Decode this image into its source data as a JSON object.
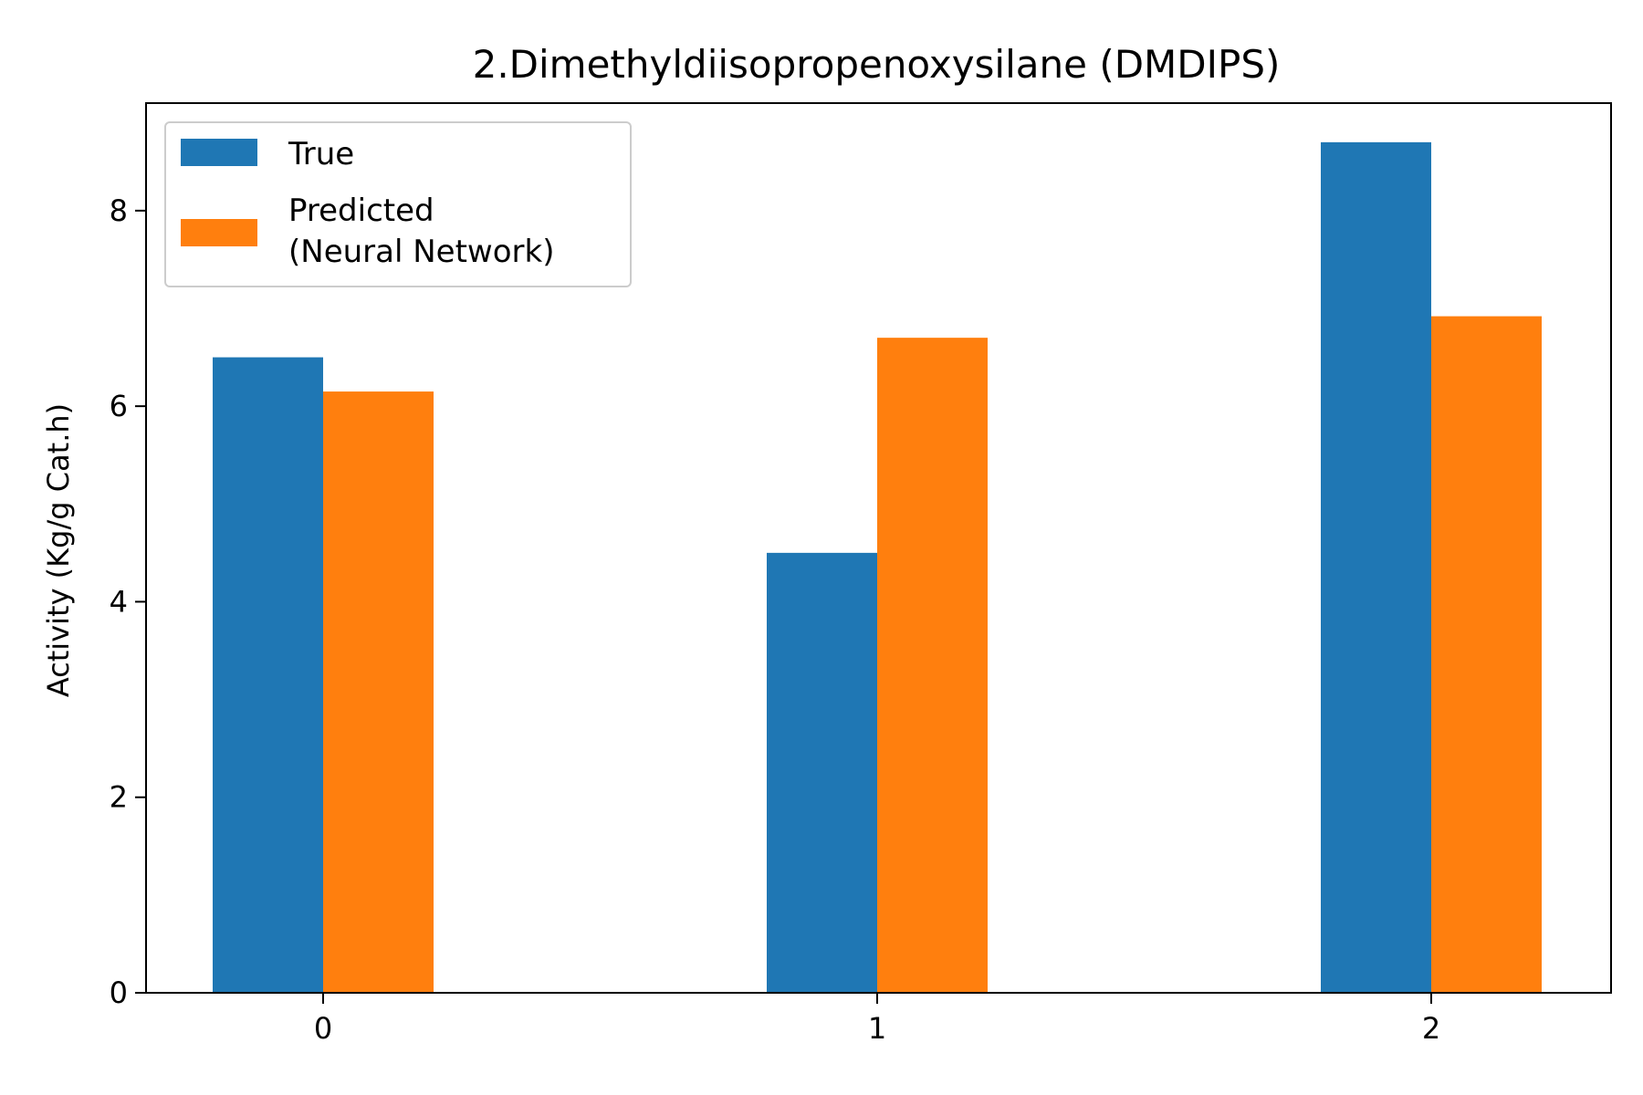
{
  "chart_data": {
    "type": "bar",
    "title": "2.Dimethyldiisopropenoxysilane (DMDIPS)",
    "xlabel": "",
    "ylabel": "Activity (Kg/g Cat.h)",
    "categories": [
      "0",
      "1",
      "2"
    ],
    "series": [
      {
        "name": "True",
        "values": [
          6.5,
          4.5,
          8.7
        ],
        "color": "#1f77b4"
      },
      {
        "name": "Predicted\n(Neural Network)",
        "values": [
          6.15,
          6.7,
          6.92
        ],
        "color": "#ff7f0e"
      }
    ],
    "ylim": [
      0,
      9.1
    ],
    "yticks": [
      0,
      2,
      4,
      6,
      8
    ],
    "grid": false,
    "legend": "top-left"
  }
}
